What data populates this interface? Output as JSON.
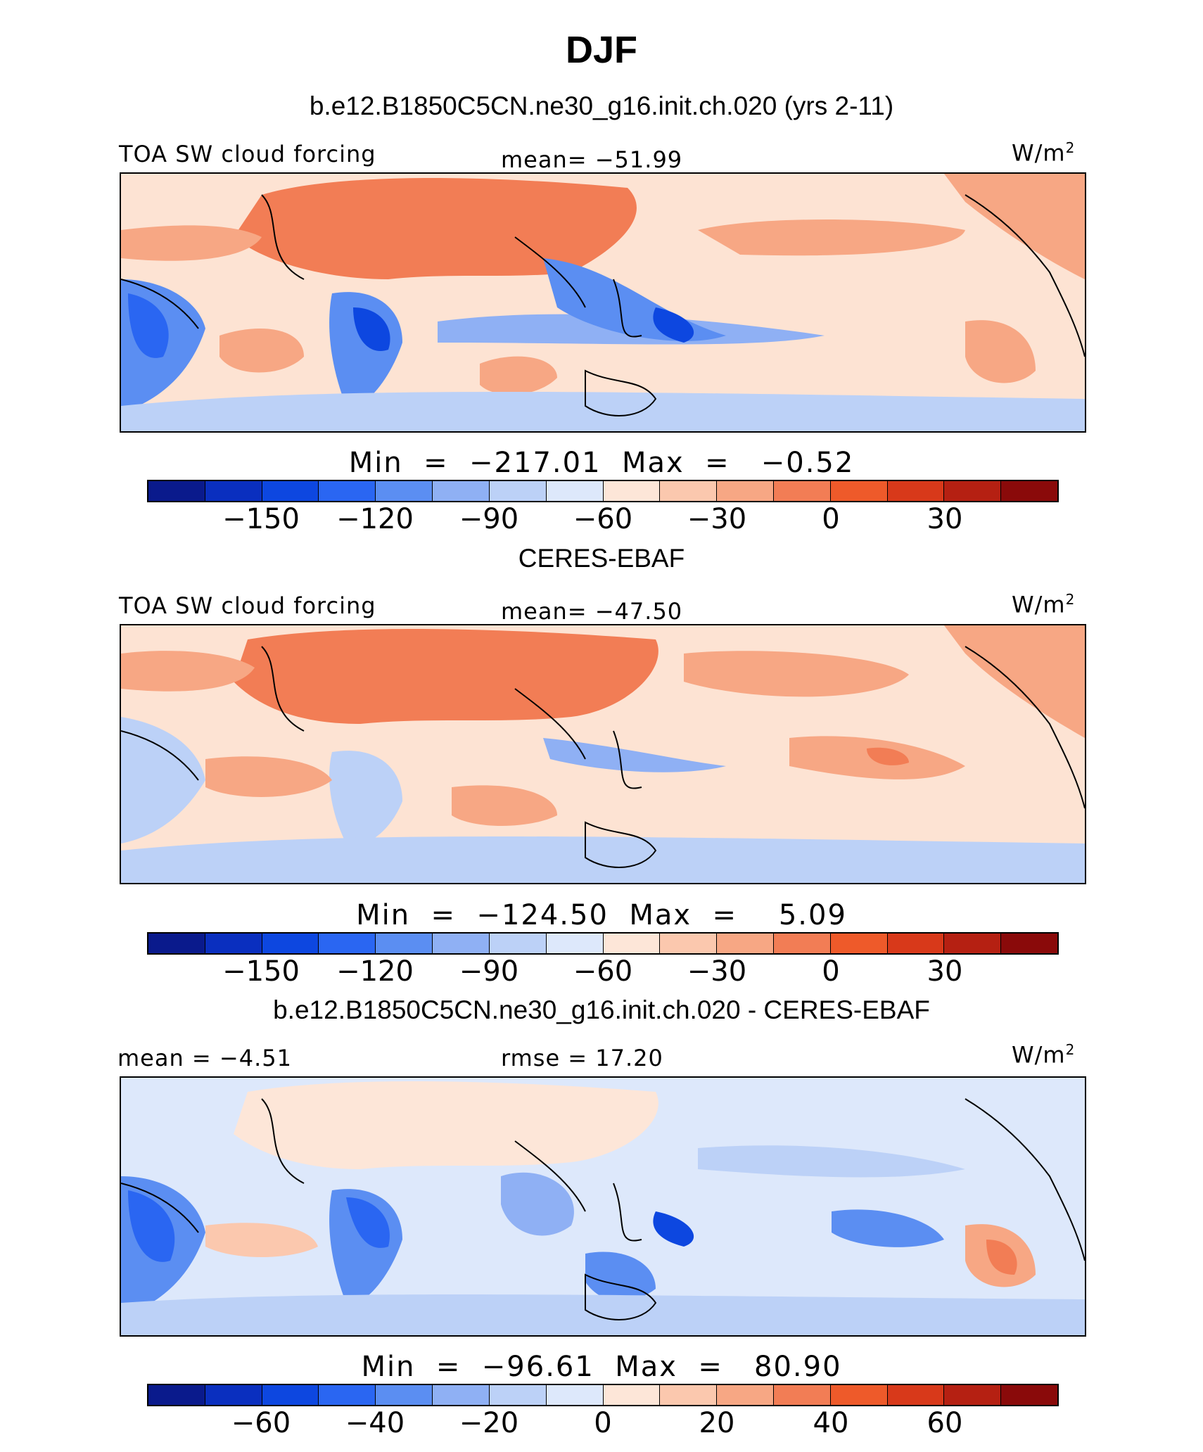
{
  "title": "DJF",
  "panels": [
    {
      "heading": "b.e12.B1850C5CN.ne30_g16.init.ch.020 (yrs 2-11)",
      "left_label": "TOA SW cloud forcing",
      "center_label": "mean=  −51.99",
      "units": "W/m",
      "units_sup": "2",
      "minmax": "Min  =  −217.01  Max  =   −0.52",
      "ticks": [
        "−150",
        "−120",
        "−90",
        "−60",
        "−30",
        "0",
        "30"
      ],
      "palette": "model"
    },
    {
      "heading": "CERES-EBAF",
      "left_label": "TOA SW cloud forcing",
      "center_label": "mean=  −47.50",
      "units": "W/m",
      "units_sup": "2",
      "minmax": "Min  =  −124.50  Max  =    5.09",
      "ticks": [
        "−150",
        "−120",
        "−90",
        "−60",
        "−30",
        "0",
        "30"
      ],
      "palette": "obs"
    },
    {
      "heading": "b.e12.B1850C5CN.ne30_g16.init.ch.020 - CERES-EBAF",
      "left_label": "mean  =   −4.51",
      "center_label": "rmse  =   17.20",
      "units": "W/m",
      "units_sup": "2",
      "minmax": "Min  =  −96.61  Max  =   80.90",
      "ticks": [
        "−60",
        "−40",
        "−20",
        "0",
        "20",
        "40",
        "60"
      ],
      "palette": "diff"
    }
  ],
  "colorbar_colors": [
    "#0a1a8c",
    "#0a2fbf",
    "#0d47e0",
    "#2a66f2",
    "#5b8ef2",
    "#8fb0f4",
    "#bcd1f7",
    "#dde8fb",
    "#fde6d8",
    "#fbc8ae",
    "#f7a784",
    "#f27d55",
    "#ee5a2a",
    "#d8391a",
    "#b52012",
    "#8a0a0a"
  ]
}
